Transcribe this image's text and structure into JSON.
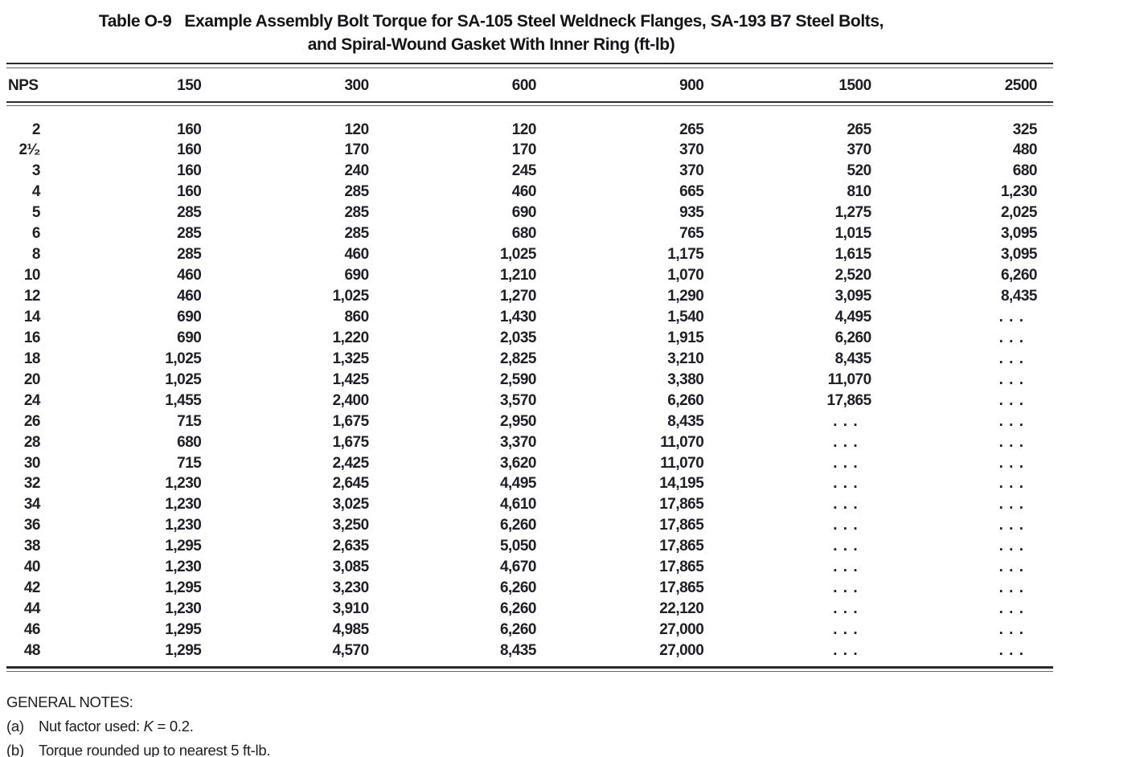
{
  "table": {
    "label": "Table O-9",
    "title_line1": "Example Assembly Bolt Torque for SA-105 Steel Weldneck Flanges, SA-193 B7 Steel Bolts,",
    "title_line2": "and Spiral-Wound Gasket With Inner Ring (ft-lb)",
    "columns": [
      "NPS",
      "150",
      "300",
      "600",
      "900",
      "1500",
      "2500"
    ],
    "ellipsis": ". . .",
    "rows": [
      {
        "nps": "2",
        "values": [
          "160",
          "120",
          "120",
          "265",
          "265",
          "325"
        ]
      },
      {
        "nps": "2¹⁄₂",
        "values": [
          "160",
          "170",
          "170",
          "370",
          "370",
          "480"
        ]
      },
      {
        "nps": "3",
        "values": [
          "160",
          "240",
          "245",
          "370",
          "520",
          "680"
        ]
      },
      {
        "nps": "4",
        "values": [
          "160",
          "285",
          "460",
          "665",
          "810",
          "1,230"
        ]
      },
      {
        "nps": "5",
        "values": [
          "285",
          "285",
          "690",
          "935",
          "1,275",
          "2,025"
        ]
      },
      {
        "nps": "6",
        "values": [
          "285",
          "285",
          "680",
          "765",
          "1,015",
          "3,095"
        ]
      },
      {
        "nps": "8",
        "values": [
          "285",
          "460",
          "1,025",
          "1,175",
          "1,615",
          "3,095"
        ]
      },
      {
        "nps": "10",
        "values": [
          "460",
          "690",
          "1,210",
          "1,070",
          "2,520",
          "6,260"
        ]
      },
      {
        "nps": "12",
        "values": [
          "460",
          "1,025",
          "1,270",
          "1,290",
          "3,095",
          "8,435"
        ]
      },
      {
        "nps": "14",
        "values": [
          "690",
          "860",
          "1,430",
          "1,540",
          "4,495",
          ". . ."
        ]
      },
      {
        "nps": "16",
        "values": [
          "690",
          "1,220",
          "2,035",
          "1,915",
          "6,260",
          ". . ."
        ]
      },
      {
        "nps": "18",
        "values": [
          "1,025",
          "1,325",
          "2,825",
          "3,210",
          "8,435",
          ". . ."
        ]
      },
      {
        "nps": "20",
        "values": [
          "1,025",
          "1,425",
          "2,590",
          "3,380",
          "11,070",
          ". . ."
        ]
      },
      {
        "nps": "24",
        "values": [
          "1,455",
          "2,400",
          "3,570",
          "6,260",
          "17,865",
          ". . ."
        ]
      },
      {
        "nps": "26",
        "values": [
          "715",
          "1,675",
          "2,950",
          "8,435",
          ". . .",
          ". . ."
        ]
      },
      {
        "nps": "28",
        "values": [
          "680",
          "1,675",
          "3,370",
          "11,070",
          ". . .",
          ". . ."
        ]
      },
      {
        "nps": "30",
        "values": [
          "715",
          "2,425",
          "3,620",
          "11,070",
          ". . .",
          ". . ."
        ]
      },
      {
        "nps": "32",
        "values": [
          "1,230",
          "2,645",
          "4,495",
          "14,195",
          ". . .",
          ". . ."
        ]
      },
      {
        "nps": "34",
        "values": [
          "1,230",
          "3,025",
          "4,610",
          "17,865",
          ". . .",
          ". . ."
        ]
      },
      {
        "nps": "36",
        "values": [
          "1,230",
          "3,250",
          "6,260",
          "17,865",
          ". . .",
          ". . ."
        ]
      },
      {
        "nps": "38",
        "values": [
          "1,295",
          "2,635",
          "5,050",
          "17,865",
          ". . .",
          ". . ."
        ]
      },
      {
        "nps": "40",
        "values": [
          "1,230",
          "3,085",
          "4,670",
          "17,865",
          ". . .",
          ". . ."
        ]
      },
      {
        "nps": "42",
        "values": [
          "1,295",
          "3,230",
          "6,260",
          "17,865",
          ". . .",
          ". . ."
        ]
      },
      {
        "nps": "44",
        "values": [
          "1,230",
          "3,910",
          "6,260",
          "22,120",
          ". . .",
          ". . ."
        ]
      },
      {
        "nps": "46",
        "values": [
          "1,295",
          "4,985",
          "6,260",
          "27,000",
          ". . .",
          ". . ."
        ]
      },
      {
        "nps": "48",
        "values": [
          "1,295",
          "4,570",
          "8,435",
          "27,000",
          ". . .",
          ". . ."
        ]
      }
    ]
  },
  "notes": {
    "header": "GENERAL NOTES:",
    "a_label": "(a)",
    "a_before": "Nut factor used: ",
    "a_var": "K",
    "a_after": " = 0.2.",
    "b_label": "(b)",
    "b_text": "Torque rounded up to nearest 5 ft-lb."
  },
  "colors": {
    "ink": "#20202a",
    "rule": "#2a2a2e",
    "background": "#ffffff"
  }
}
